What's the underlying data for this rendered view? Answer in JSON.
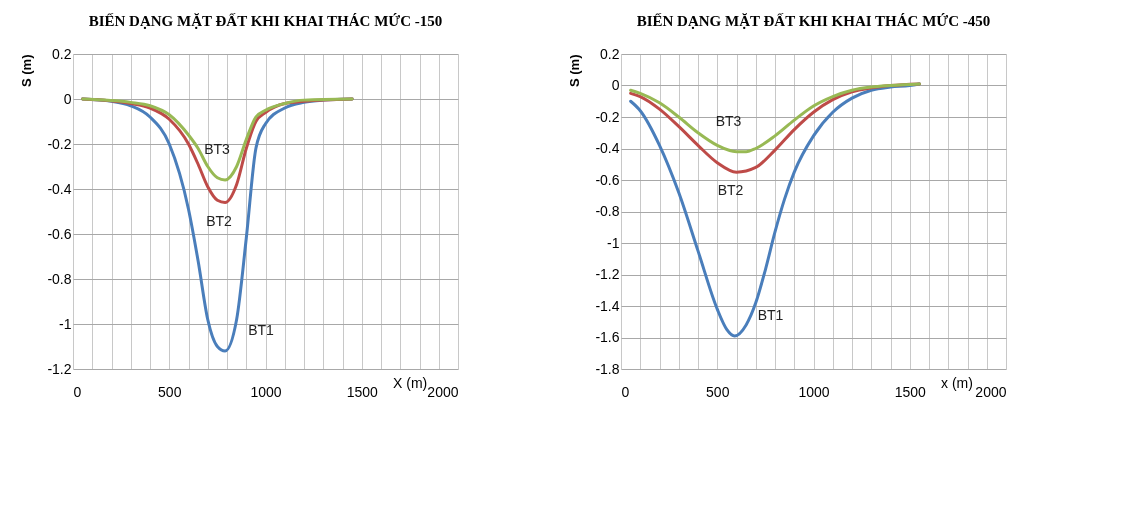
{
  "chart_data": [
    {
      "type": "line",
      "title": "BIẾN DẠNG MẶT ĐẤT KHI KHAI THÁC MỨC -150",
      "xlabel": "X (m)",
      "ylabel": "S (m)",
      "grid": true,
      "line_style": "solid",
      "marker": "none",
      "xlim": [
        0,
        2000
      ],
      "xticks": [
        0,
        {
          "value": 100,
          "label": null
        },
        {
          "value": 200,
          "label": null
        },
        {
          "value": 300,
          "label": null
        },
        {
          "value": 400,
          "label": null
        },
        500,
        {
          "value": 600,
          "label": null
        },
        {
          "value": 700,
          "label": null
        },
        {
          "value": 800,
          "label": null
        },
        {
          "value": 900,
          "label": null
        },
        1000,
        {
          "value": 1100,
          "label": null
        },
        {
          "value": 1200,
          "label": null
        },
        {
          "value": 1300,
          "label": null
        },
        {
          "value": 1400,
          "label": null
        },
        1500,
        {
          "value": 1600,
          "label": null
        },
        {
          "value": 1700,
          "label": null
        },
        {
          "value": 1800,
          "label": null
        },
        {
          "value": 1900,
          "label": null
        },
        2000
      ],
      "ylim": [
        -1.2,
        0.2
      ],
      "yticks": [
        -1.2,
        -1,
        -0.8,
        -0.6,
        -0.4,
        -0.2,
        0,
        0.2
      ],
      "series": [
        {
          "name": "BT1",
          "color": "#4a7ebb",
          "x": [
            50,
            200,
            300,
            400,
            500,
            600,
            650,
            700,
            750,
            790,
            850,
            900,
            950,
            1000,
            1100,
            1200,
            1300,
            1450
          ],
          "values": [
            0,
            -0.01,
            -0.03,
            -0.08,
            -0.2,
            -0.49,
            -0.72,
            -0.98,
            -1.1,
            -1.12,
            -0.98,
            -0.62,
            -0.22,
            -0.11,
            -0.04,
            -0.015,
            -0.005,
            0
          ]
        },
        {
          "name": "BT2",
          "color": "#be4b48",
          "x": [
            50,
            300,
            400,
            500,
            600,
            650,
            700,
            750,
            790,
            850,
            900,
            950,
            1000,
            1100,
            1200,
            1450
          ],
          "values": [
            0,
            -0.02,
            -0.04,
            -0.09,
            -0.2,
            -0.29,
            -0.39,
            -0.45,
            -0.46,
            -0.38,
            -0.22,
            -0.1,
            -0.06,
            -0.02,
            -0.01,
            0
          ]
        },
        {
          "name": "BT3",
          "color": "#98b954",
          "x": [
            50,
            300,
            400,
            500,
            600,
            650,
            700,
            750,
            790,
            850,
            900,
            950,
            1000,
            1100,
            1200,
            1450
          ],
          "values": [
            0,
            -0.015,
            -0.03,
            -0.07,
            -0.16,
            -0.22,
            -0.3,
            -0.35,
            -0.36,
            -0.3,
            -0.18,
            -0.08,
            -0.05,
            -0.02,
            -0.005,
            0
          ]
        }
      ]
    },
    {
      "type": "line",
      "title": "BIẾN DẠNG MẶT ĐẤT KHI KHAI THÁC MỨC -450",
      "xlabel": "x (m)",
      "ylabel": "S (m)",
      "grid": true,
      "line_style": "solid",
      "marker": "none",
      "xlim": [
        0,
        2000
      ],
      "xticks": [
        0,
        {
          "value": 100,
          "label": null
        },
        {
          "value": 200,
          "label": null
        },
        {
          "value": 300,
          "label": null
        },
        {
          "value": 400,
          "label": null
        },
        500,
        {
          "value": 600,
          "label": null
        },
        {
          "value": 700,
          "label": null
        },
        {
          "value": 800,
          "label": null
        },
        {
          "value": 900,
          "label": null
        },
        1000,
        {
          "value": 1100,
          "label": null
        },
        {
          "value": 1200,
          "label": null
        },
        {
          "value": 1300,
          "label": null
        },
        {
          "value": 1400,
          "label": null
        },
        1500,
        {
          "value": 1600,
          "label": null
        },
        {
          "value": 1700,
          "label": null
        },
        {
          "value": 1800,
          "label": null
        },
        {
          "value": 1900,
          "label": null
        },
        2000
      ],
      "ylim": [
        -1.8,
        0.2
      ],
      "yticks": [
        -1.8,
        -1.6,
        -1.4,
        -1.2,
        -1,
        -0.8,
        -0.6,
        -0.4,
        -0.2,
        0,
        0.2
      ],
      "series": [
        {
          "name": "BT1",
          "color": "#4a7ebb",
          "x": [
            50,
            100,
            200,
            300,
            400,
            500,
            550,
            590,
            650,
            700,
            750,
            800,
            850,
            900,
            1000,
            1100,
            1200,
            1300,
            1400,
            1500,
            1550
          ],
          "values": [
            -0.1,
            -0.16,
            -0.38,
            -0.68,
            -1.05,
            -1.42,
            -1.55,
            -1.59,
            -1.52,
            -1.38,
            -1.17,
            -0.93,
            -0.72,
            -0.55,
            -0.32,
            -0.17,
            -0.08,
            -0.03,
            -0.01,
            0,
            0.01
          ]
        },
        {
          "name": "BT2",
          "color": "#be4b48",
          "x": [
            50,
            100,
            200,
            300,
            400,
            500,
            600,
            700,
            800,
            900,
            1000,
            1100,
            1200,
            1300,
            1400,
            1550
          ],
          "values": [
            -0.05,
            -0.07,
            -0.15,
            -0.26,
            -0.38,
            -0.49,
            -0.55,
            -0.52,
            -0.41,
            -0.28,
            -0.17,
            -0.09,
            -0.04,
            -0.015,
            0,
            0.01
          ]
        },
        {
          "name": "BT3",
          "color": "#98b954",
          "x": [
            50,
            100,
            200,
            300,
            400,
            500,
            600,
            650,
            700,
            800,
            900,
            1000,
            1100,
            1200,
            1300,
            1400,
            1550
          ],
          "values": [
            -0.03,
            -0.05,
            -0.11,
            -0.2,
            -0.3,
            -0.38,
            -0.42,
            -0.42,
            -0.4,
            -0.32,
            -0.22,
            -0.13,
            -0.07,
            -0.03,
            -0.01,
            0,
            0.01
          ]
        }
      ]
    }
  ]
}
